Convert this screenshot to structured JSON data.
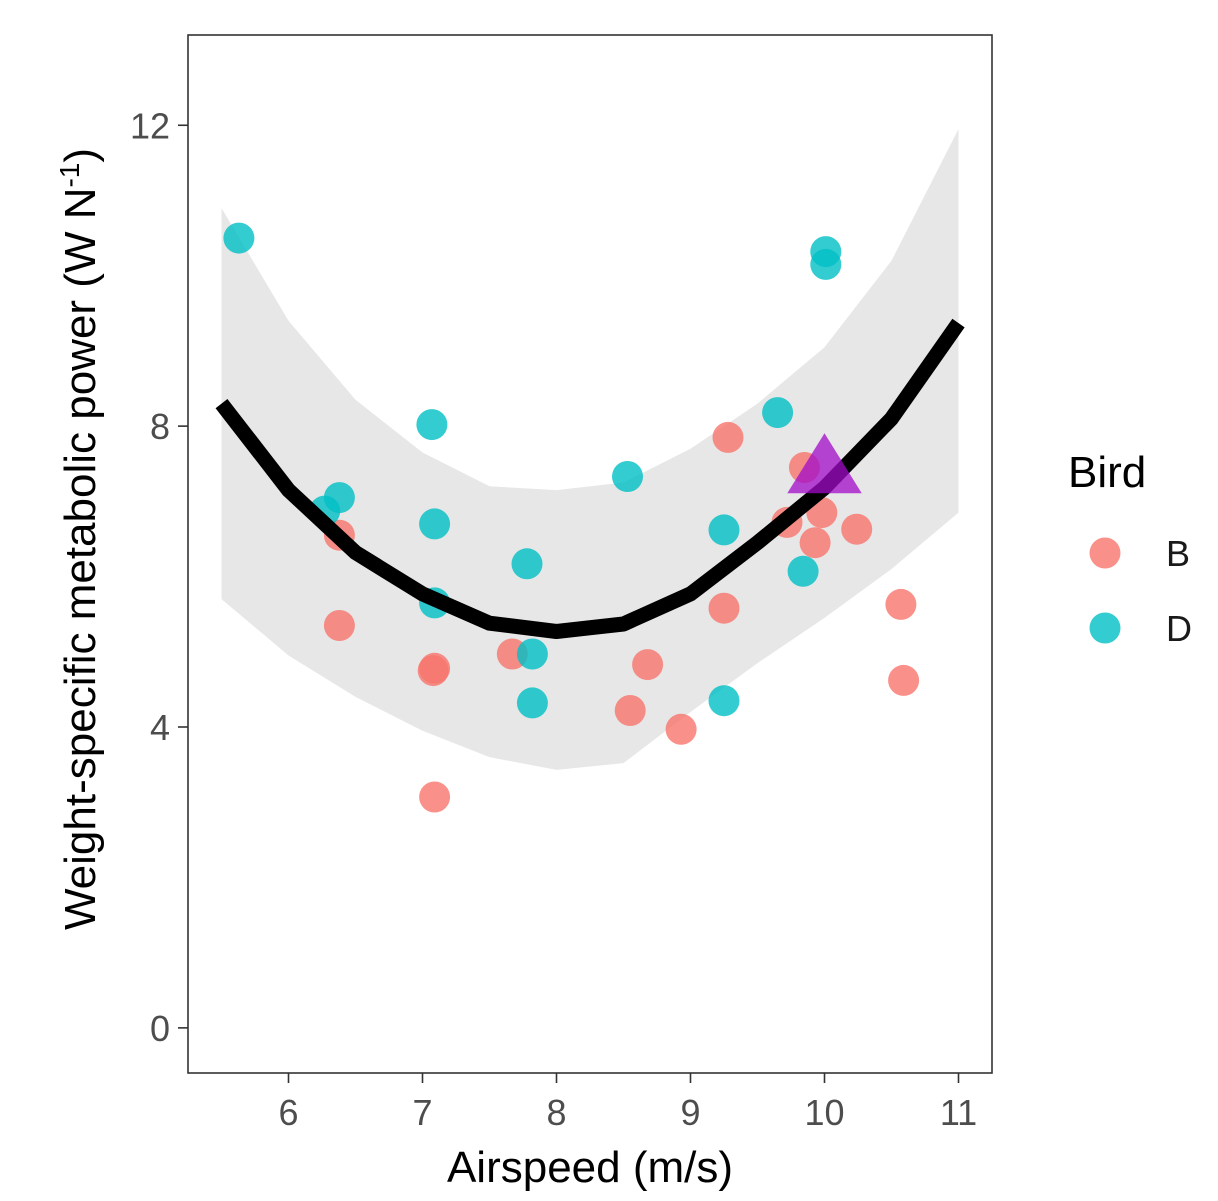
{
  "chart_data": {
    "type": "scatter",
    "xlabel": "Airspeed (m/s)",
    "ylabel_main": "Weight-specific metabolic power  (W N",
    "ylabel_sup": "-1",
    "ylabel_close": ")",
    "xlim": [
      5.25,
      11.25
    ],
    "ylim": [
      -0.6,
      13.2
    ],
    "x_ticks": [
      6,
      7,
      8,
      9,
      10,
      11
    ],
    "y_ticks": [
      0,
      4,
      8,
      12
    ],
    "x_tick_labels": [
      "6",
      "7",
      "8",
      "9",
      "10",
      "11"
    ],
    "y_tick_labels": [
      "0",
      "4",
      "8",
      "12"
    ],
    "grid": false,
    "legend": {
      "title": "Bird",
      "placement": "right",
      "entries": [
        {
          "label": "B",
          "color": "#F8766D"
        },
        {
          "label": "D",
          "color": "#00BFC4"
        }
      ]
    },
    "series": [
      {
        "name": "B",
        "color": "#F8766D",
        "points": [
          [
            6.38,
            6.55
          ],
          [
            6.38,
            5.35
          ],
          [
            7.08,
            4.75
          ],
          [
            7.09,
            4.78
          ],
          [
            7.09,
            3.07
          ],
          [
            7.67,
            4.97
          ],
          [
            8.55,
            4.22
          ],
          [
            8.68,
            4.83
          ],
          [
            8.93,
            3.97
          ],
          [
            9.25,
            5.58
          ],
          [
            9.28,
            7.85
          ],
          [
            9.72,
            6.72
          ],
          [
            9.85,
            7.45
          ],
          [
            9.93,
            6.45
          ],
          [
            9.98,
            6.85
          ],
          [
            10.24,
            6.63
          ],
          [
            10.57,
            5.63
          ],
          [
            10.59,
            4.62
          ]
        ]
      },
      {
        "name": "D",
        "color": "#00BFC4",
        "points": [
          [
            5.63,
            10.5
          ],
          [
            6.27,
            6.87
          ],
          [
            6.38,
            7.05
          ],
          [
            7.07,
            8.02
          ],
          [
            7.09,
            6.7
          ],
          [
            7.09,
            5.65
          ],
          [
            7.78,
            6.17
          ],
          [
            7.82,
            4.97
          ],
          [
            7.82,
            4.32
          ],
          [
            8.53,
            7.33
          ],
          [
            9.25,
            6.62
          ],
          [
            9.25,
            4.35
          ],
          [
            9.65,
            8.18
          ],
          [
            9.84,
            6.07
          ],
          [
            10.01,
            10.32
          ],
          [
            10.01,
            10.15
          ]
        ]
      }
    ],
    "fit_line": {
      "color": "#000000",
      "x": [
        5.5,
        6.0,
        6.5,
        7.0,
        7.5,
        8.0,
        8.5,
        9.0,
        9.5,
        10.0,
        10.5,
        11.0
      ],
      "y": [
        8.3,
        7.15,
        6.32,
        5.77,
        5.38,
        5.27,
        5.37,
        5.77,
        6.45,
        7.18,
        8.1,
        9.37
      ]
    },
    "confidence_band": {
      "color": "#d9d9d9",
      "x": [
        5.5,
        6.0,
        6.5,
        7.0,
        7.5,
        8.0,
        8.5,
        9.0,
        9.5,
        10.0,
        10.5,
        11.0
      ],
      "upper": [
        10.9,
        9.4,
        8.35,
        7.65,
        7.2,
        7.15,
        7.25,
        7.7,
        8.3,
        9.05,
        10.2,
        11.95
      ],
      "lower": [
        5.7,
        4.95,
        4.4,
        3.95,
        3.6,
        3.43,
        3.52,
        4.2,
        4.85,
        5.45,
        6.1,
        6.85
      ]
    },
    "highlight_point": {
      "x": 10.0,
      "y": 7.4,
      "shape": "triangle",
      "color": "#A20BC9"
    }
  }
}
